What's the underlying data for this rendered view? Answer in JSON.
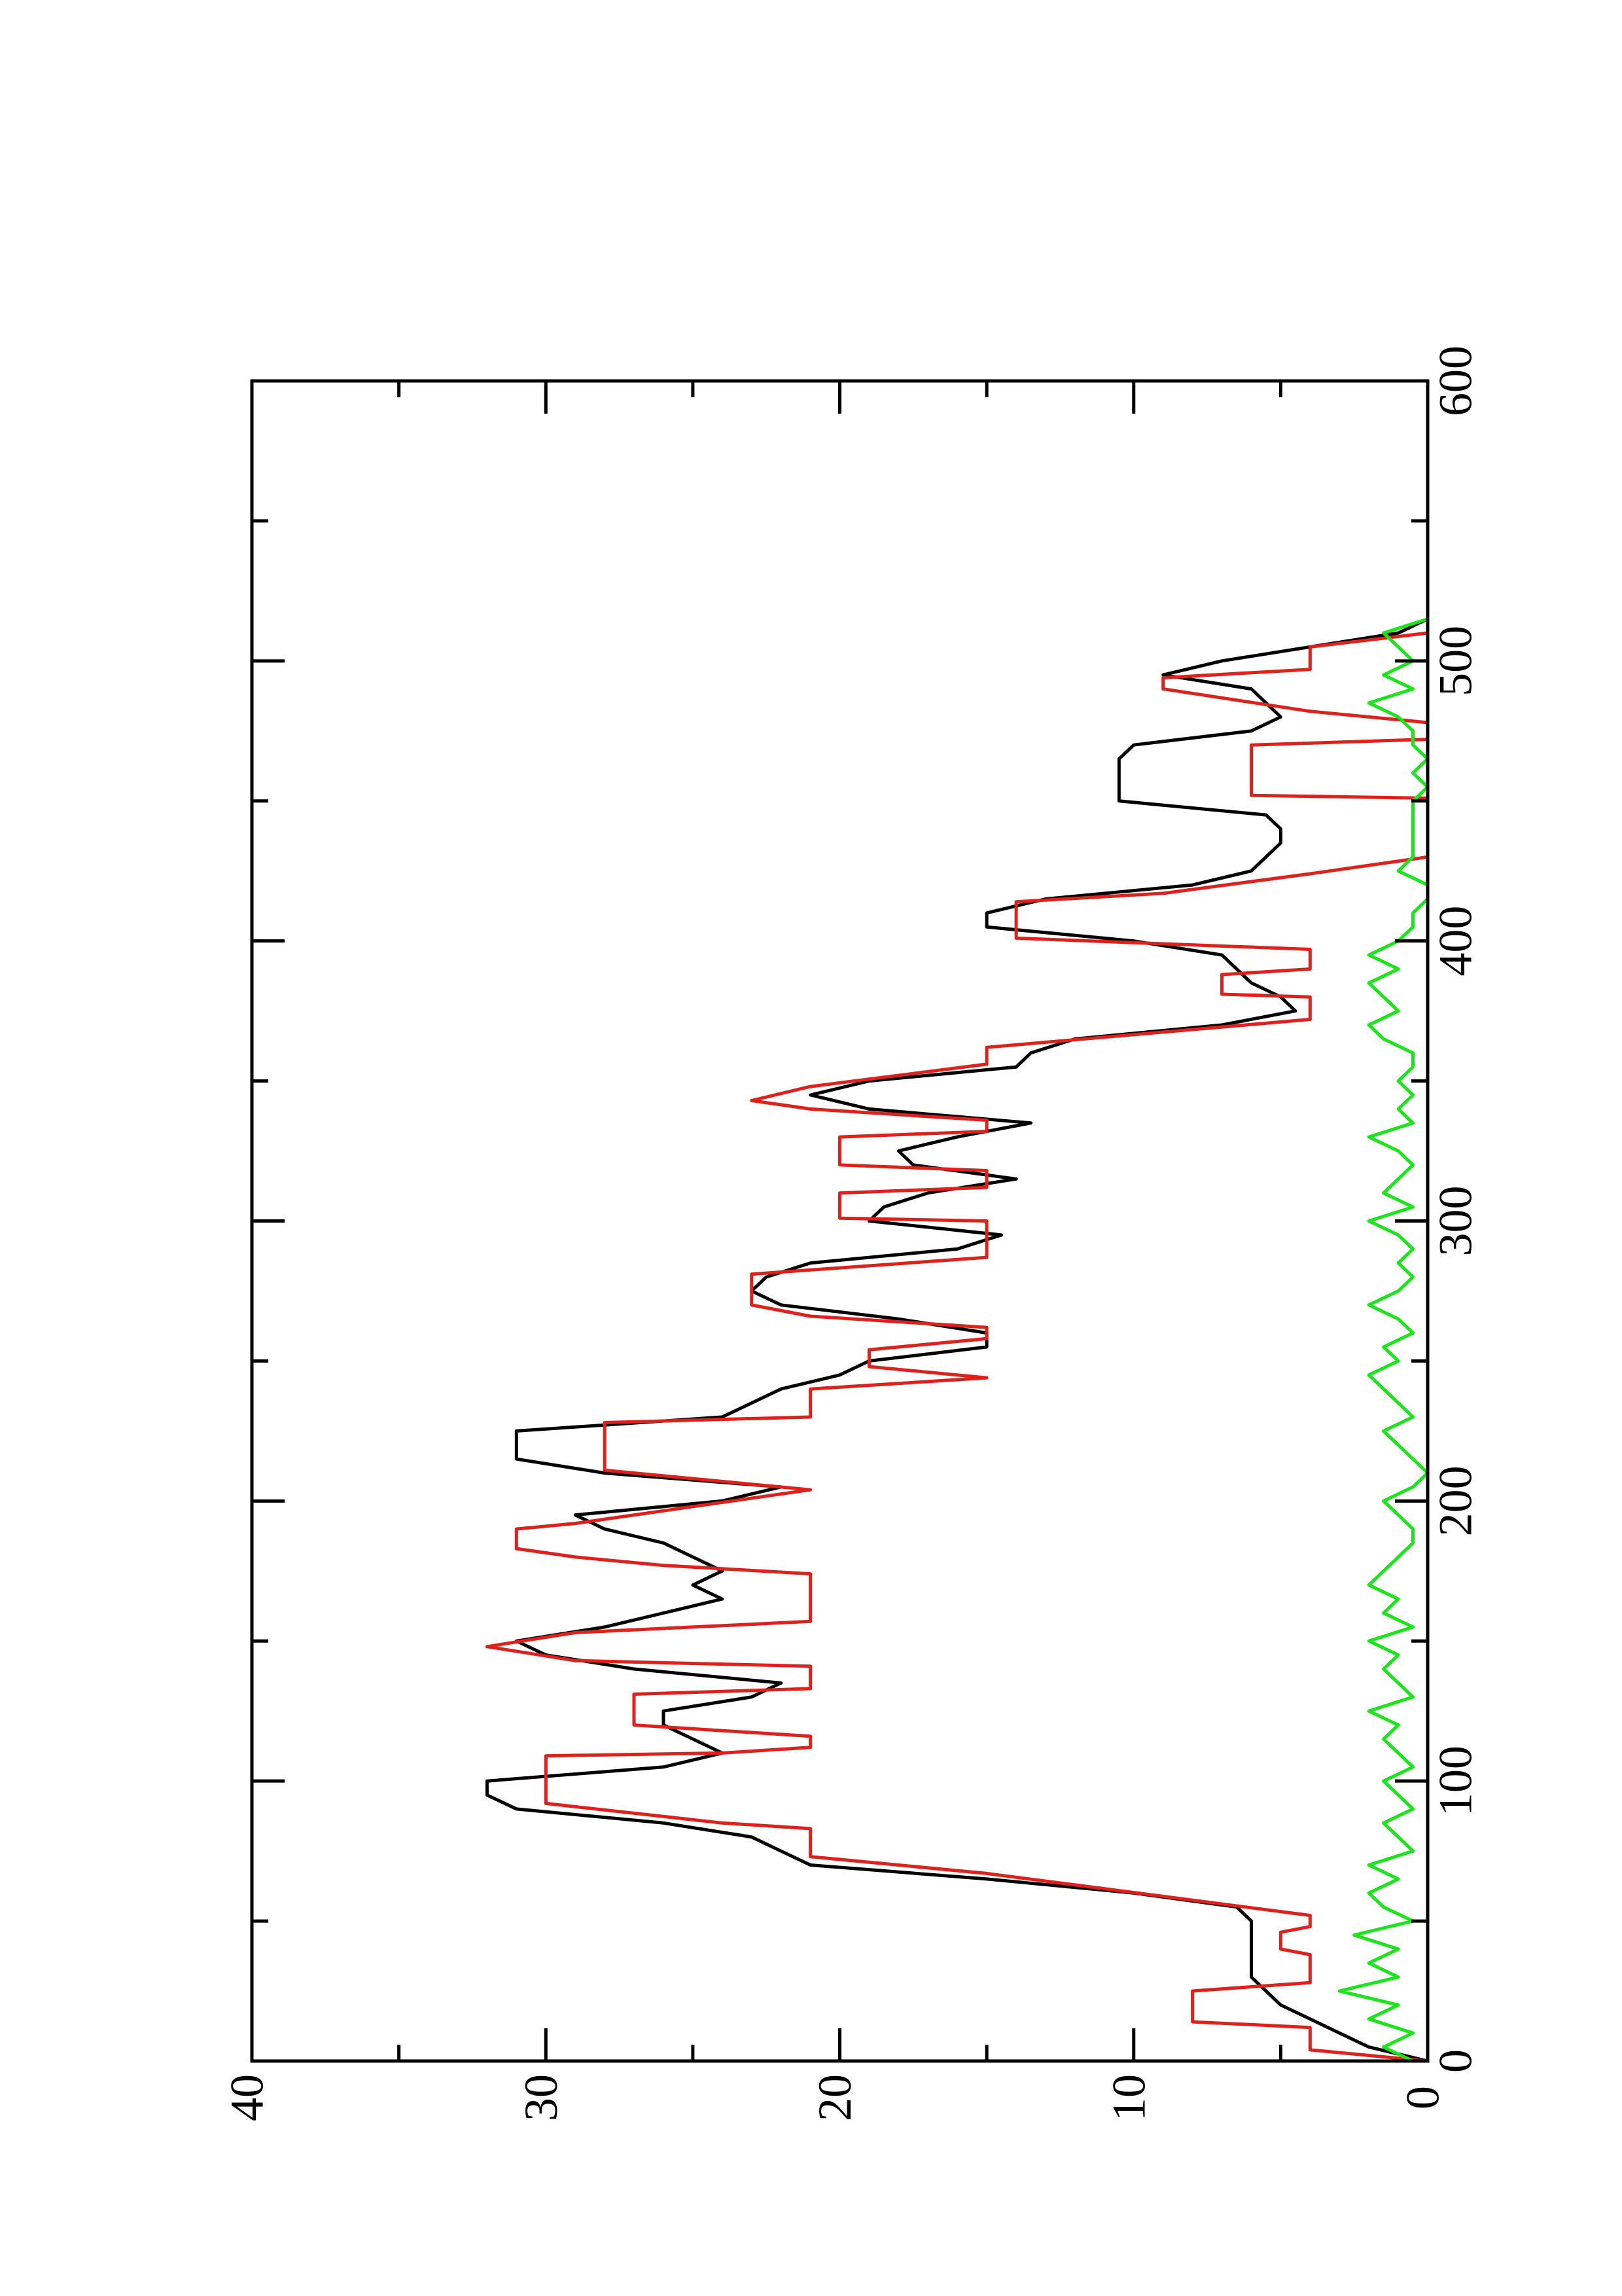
{
  "chart_data": {
    "type": "line",
    "xlim": [
      0,
      600
    ],
    "xticks": [
      0,
      100,
      200,
      300,
      400,
      500,
      600
    ],
    "xminor": [
      50,
      150,
      250,
      350,
      450,
      550
    ],
    "ylim": [
      0,
      40
    ],
    "yticks": [
      0,
      10,
      20,
      30,
      40
    ],
    "yminor": [
      5,
      15,
      25,
      35
    ],
    "series": [
      {
        "color": "#000000",
        "x": [
          0,
          5,
          10,
          15,
          20,
          25,
          30,
          35,
          40,
          45,
          50,
          55,
          60,
          65,
          70,
          75,
          80,
          85,
          90,
          95,
          100,
          105,
          110,
          115,
          120,
          125,
          130,
          135,
          140,
          145,
          150,
          155,
          160,
          165,
          170,
          175,
          180,
          185,
          190,
          195,
          200,
          205,
          210,
          215,
          220,
          225,
          230,
          235,
          240,
          245,
          250,
          255,
          260,
          265,
          270,
          275,
          280,
          285,
          290,
          295,
          300,
          305,
          310,
          315,
          320,
          325,
          330,
          335,
          340,
          345,
          350,
          355,
          360,
          365,
          370,
          375,
          380,
          385,
          390,
          395,
          400,
          405,
          410,
          415,
          420,
          425,
          430,
          435,
          440,
          445,
          450,
          455,
          460,
          465,
          470,
          475,
          480,
          485,
          490,
          495,
          500,
          505,
          510,
          515
        ],
        "values": [
          0,
          2,
          3,
          4,
          5,
          5.5,
          6,
          6,
          6,
          6,
          6,
          6.5,
          10,
          15,
          21,
          22,
          23,
          26,
          31,
          32,
          32,
          26,
          24,
          25,
          26,
          26,
          23,
          22,
          27,
          30,
          31,
          28,
          26,
          24,
          25,
          24,
          25,
          26,
          28,
          29,
          24,
          22,
          28,
          31,
          31,
          31,
          24,
          23,
          22,
          20,
          19,
          15,
          15,
          18,
          22,
          23,
          22.5,
          21,
          16,
          14.5,
          19,
          18.5,
          17,
          14,
          17.5,
          18,
          16,
          13.5,
          19,
          21,
          19,
          14,
          13.5,
          12,
          7,
          4.5,
          5,
          6,
          6.5,
          7,
          10,
          15,
          15,
          13,
          8,
          6,
          5.5,
          5,
          5,
          5.5,
          10.5,
          10.5,
          10.5,
          10.5,
          10,
          6,
          5,
          5.5,
          6,
          9,
          7,
          4,
          1,
          0
        ]
      },
      {
        "color": "#e0201b",
        "x": [
          0,
          4,
          12,
          14,
          25,
          28,
          38,
          40,
          46,
          48,
          52,
          67,
          73,
          83,
          85,
          92,
          109,
          110,
          112,
          116,
          120,
          131,
          133,
          141,
          143,
          148,
          153,
          155,
          157,
          174,
          177,
          180,
          183,
          190,
          192,
          204,
          211,
          228,
          230,
          240,
          244,
          248,
          254,
          258,
          262,
          266,
          270,
          281,
          287,
          300,
          301,
          310,
          312,
          318,
          320,
          330,
          332,
          336,
          340,
          343,
          348,
          356,
          362,
          372,
          380,
          381,
          388,
          390,
          397,
          401,
          414,
          417,
          424,
          430,
          451,
          452,
          470,
          472,
          478,
          482,
          490,
          494,
          497,
          505,
          510
        ],
        "values": [
          0,
          4,
          4,
          8,
          8,
          4,
          4,
          5,
          5,
          4,
          4,
          15,
          21,
          21,
          24,
          30,
          30,
          24,
          21,
          21,
          27,
          27,
          21,
          21,
          29,
          32,
          29,
          25,
          21,
          21,
          26,
          29,
          31,
          31,
          29,
          21,
          28,
          28,
          21,
          21,
          15,
          19,
          19,
          15,
          15,
          21,
          23,
          23,
          15,
          15,
          20,
          20,
          15,
          15,
          20,
          20,
          15,
          15,
          21,
          23,
          21,
          15,
          15,
          4,
          4,
          7,
          7,
          4,
          4,
          14,
          14,
          9,
          4,
          0,
          0,
          6,
          6,
          0,
          0,
          4,
          9,
          9,
          4,
          4,
          0
        ]
      },
      {
        "color": "#19e619",
        "x": [
          0,
          5,
          10,
          15,
          20,
          25,
          30,
          35,
          40,
          45,
          50,
          55,
          60,
          65,
          70,
          75,
          80,
          85,
          90,
          95,
          100,
          105,
          110,
          115,
          120,
          125,
          130,
          135,
          140,
          145,
          150,
          155,
          160,
          165,
          170,
          175,
          180,
          185,
          190,
          195,
          200,
          205,
          210,
          215,
          220,
          225,
          230,
          235,
          240,
          245,
          250,
          255,
          260,
          265,
          270,
          275,
          280,
          285,
          290,
          295,
          300,
          305,
          310,
          315,
          320,
          325,
          330,
          335,
          340,
          345,
          350,
          355,
          360,
          365,
          370,
          375,
          380,
          385,
          390,
          395,
          400,
          405,
          410,
          415,
          420,
          425,
          430,
          435,
          440,
          445,
          450,
          455,
          460,
          465,
          470,
          475,
          480,
          485,
          490,
          495,
          500,
          505,
          510,
          515
        ],
        "values": [
          0.5,
          1.5,
          0.5,
          2,
          1,
          3,
          1,
          2,
          1,
          2.5,
          0.5,
          1.5,
          2,
          1,
          2,
          0.5,
          1,
          1.5,
          0.5,
          1,
          1.5,
          0.5,
          1,
          1.5,
          1,
          2,
          0.5,
          1,
          1.5,
          1,
          2,
          0.5,
          1.5,
          1,
          2,
          1.5,
          1,
          0.5,
          0.5,
          1,
          1.5,
          0.5,
          0,
          0.5,
          1,
          1.5,
          0.5,
          1,
          1.5,
          2,
          1,
          1.5,
          0.5,
          1,
          2,
          1,
          0.5,
          1,
          0.5,
          1,
          2,
          0.5,
          1.5,
          1,
          0.5,
          1,
          2,
          0.5,
          1,
          0.5,
          1,
          0.5,
          0.5,
          1.5,
          2,
          1,
          1.5,
          2,
          1,
          2,
          1,
          0.5,
          0.5,
          0,
          0,
          1,
          0.5,
          0.5,
          0.5,
          0.5,
          0.5,
          0,
          0.5,
          0,
          0.5,
          0.5,
          1,
          2,
          0.5,
          1.5,
          0.5,
          1,
          1.5,
          0
        ]
      }
    ]
  }
}
